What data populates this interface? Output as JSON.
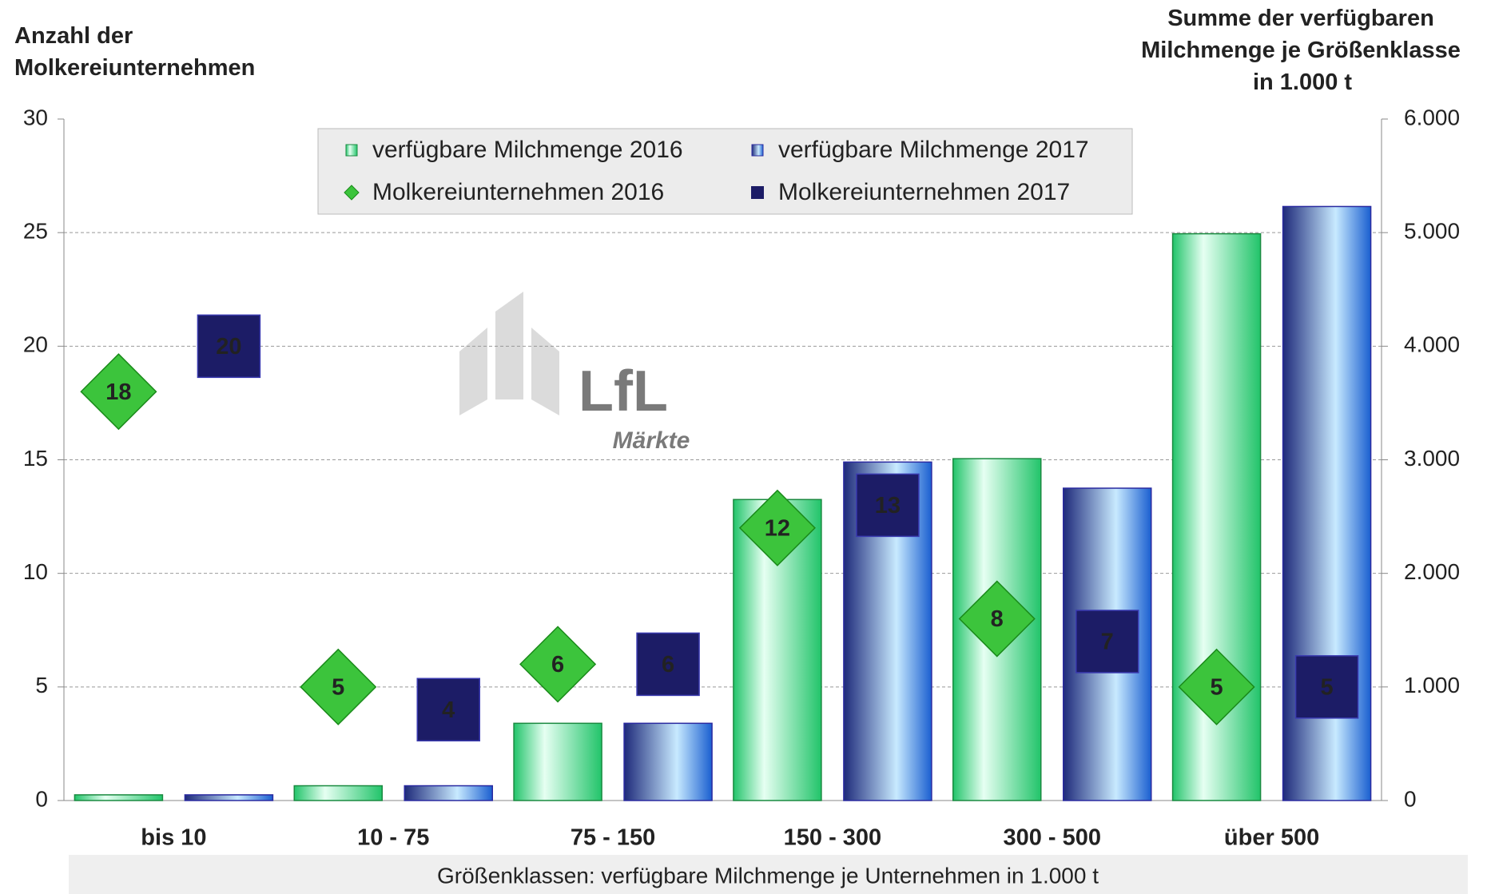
{
  "chart_data": {
    "type": "bar",
    "y_title": "Anzahl der Molkereiunternehmen",
    "y2_title": "Summe der verfügbaren Milchmenge je Größenklasse in 1.000 t",
    "x_title": "Größenklassen: verfügbare Milchmenge je Unternehmen in 1.000 t",
    "watermark": {
      "text": "LfL",
      "sub": "Märkte"
    },
    "categories": [
      "bis 10",
      "10 - 75",
      "75 - 150",
      "150 - 300",
      "300 - 500",
      "über 500"
    ],
    "series": [
      {
        "name": "verfügbare Milchmenge 2016",
        "color": "#22c46a",
        "axis": "y2",
        "values": [
          50,
          130,
          680,
          2650,
          3010,
          4990
        ]
      },
      {
        "name": "verfügbare Milchmenge 2017",
        "color": "#1e2a7a",
        "axis": "y2",
        "values": [
          50,
          130,
          680,
          2980,
          2750,
          5230
        ]
      },
      {
        "name": "Molkereiunternehmen 2016",
        "color": "#3cc43c",
        "marker": "diamond",
        "axis": "y",
        "values": [
          18,
          5,
          6,
          12,
          8,
          5
        ]
      },
      {
        "name": "Molkereiunternehmen 2017",
        "color": "#1c1c66",
        "marker": "square",
        "axis": "y",
        "values": [
          20,
          4,
          6,
          13,
          7,
          5
        ]
      }
    ],
    "ylim": [
      0,
      30
    ],
    "yticks": [
      0,
      5,
      10,
      15,
      20,
      25,
      30
    ],
    "y2lim": [
      0,
      6000
    ],
    "y2ticks": [
      0,
      {
        "value": 1000,
        "label": "1.000"
      },
      {
        "value": 2000,
        "label": "2.000"
      },
      {
        "value": 3000,
        "label": "3.000"
      },
      {
        "value": 4000,
        "label": "4.000"
      },
      {
        "value": 5000,
        "label": "5.000"
      },
      {
        "value": 6000,
        "label": "6.000"
      }
    ],
    "grid": true,
    "legend": "top"
  }
}
